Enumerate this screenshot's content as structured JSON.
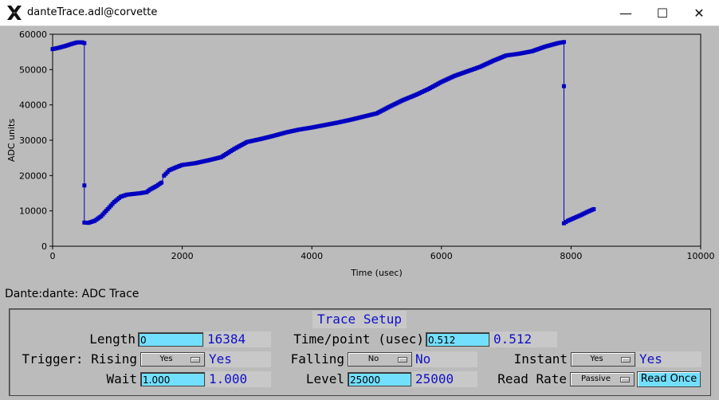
{
  "window": {
    "title": "danteTrace.adl@corvette",
    "minimize_glyph": "—",
    "maximize_glyph": "☐",
    "close_glyph": "✕"
  },
  "plot_label": "Dante:dante: ADC Trace",
  "chart_data": {
    "type": "line",
    "xlabel": "Time (usec)",
    "ylabel": "ADC units",
    "xlim": [
      0,
      10000
    ],
    "ylim": [
      0,
      60000
    ],
    "xticks": [
      0,
      2000,
      4000,
      6000,
      8000,
      10000
    ],
    "yticks": [
      0,
      10000,
      20000,
      30000,
      40000,
      50000,
      60000
    ],
    "grid": false,
    "line_color": "#0000c0",
    "background": "#bbbbbb",
    "series": [
      {
        "points": [
          [
            0,
            55800
          ],
          [
            100,
            56200
          ],
          [
            200,
            56700
          ],
          [
            300,
            57300
          ],
          [
            380,
            57700
          ],
          [
            460,
            57700
          ],
          [
            490,
            57500
          ],
          [
            490,
            17200
          ],
          [
            490,
            6700
          ],
          [
            550,
            6600
          ],
          [
            650,
            7200
          ],
          [
            750,
            8500
          ],
          [
            850,
            10500
          ],
          [
            950,
            12500
          ],
          [
            1050,
            14000
          ],
          [
            1150,
            14600
          ],
          [
            1250,
            14800
          ],
          [
            1350,
            15000
          ],
          [
            1450,
            15300
          ],
          [
            1500,
            16000
          ],
          [
            1600,
            17000
          ],
          [
            1680,
            18000
          ],
          [
            1720,
            20000
          ],
          [
            1800,
            21500
          ],
          [
            1900,
            22300
          ],
          [
            2000,
            23000
          ],
          [
            2200,
            23500
          ],
          [
            2400,
            24300
          ],
          [
            2600,
            25200
          ],
          [
            2800,
            27500
          ],
          [
            3000,
            29500
          ],
          [
            3200,
            30300
          ],
          [
            3400,
            31200
          ],
          [
            3600,
            32200
          ],
          [
            3800,
            33000
          ],
          [
            4000,
            33600
          ],
          [
            4200,
            34300
          ],
          [
            4400,
            35000
          ],
          [
            4600,
            35800
          ],
          [
            4800,
            36700
          ],
          [
            5000,
            37600
          ],
          [
            5200,
            39500
          ],
          [
            5400,
            41300
          ],
          [
            5600,
            42800
          ],
          [
            5800,
            44500
          ],
          [
            6000,
            46500
          ],
          [
            6200,
            48200
          ],
          [
            6400,
            49500
          ],
          [
            6600,
            50800
          ],
          [
            6800,
            52500
          ],
          [
            7000,
            54000
          ],
          [
            7200,
            54500
          ],
          [
            7400,
            55200
          ],
          [
            7600,
            56500
          ],
          [
            7800,
            57500
          ],
          [
            7890,
            57800
          ],
          [
            7890,
            45300
          ],
          [
            7890,
            6500
          ],
          [
            7950,
            7200
          ],
          [
            8050,
            8000
          ],
          [
            8150,
            8800
          ],
          [
            8250,
            9700
          ],
          [
            8350,
            10500
          ]
        ]
      }
    ]
  },
  "setup": {
    "title": "Trace Setup",
    "length_label": "Length",
    "length_input": "0",
    "length_readback": "16384",
    "timepoint_label": "Time/point (usec)",
    "timepoint_input": "0.512",
    "timepoint_readback": "0.512",
    "trigger_label": "Trigger: Rising",
    "rising_value": "Yes",
    "rising_readback": "Yes",
    "falling_label": "Falling",
    "falling_value": "No",
    "falling_readback": "No",
    "instant_label": "Instant",
    "instant_value": "Yes",
    "instant_readback": "Yes",
    "wait_label": "Wait",
    "wait_input": "1.000",
    "wait_readback": "1.000",
    "level_label": "Level",
    "level_input": "25000",
    "level_readback": "25000",
    "readrate_label": "Read Rate",
    "readrate_value": "Passive",
    "read_once_label": "Read Once"
  }
}
